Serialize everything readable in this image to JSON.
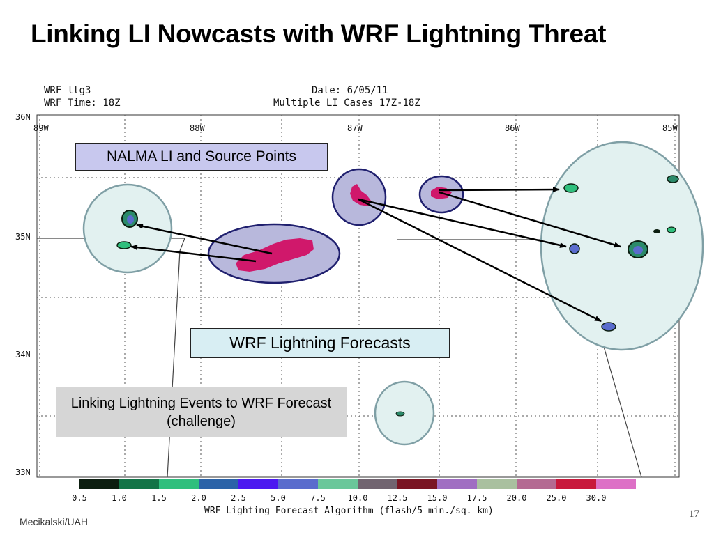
{
  "slide": {
    "title": "Linking LI Nowcasts with WRF Lightning Threat",
    "footer_credit": "Mecikalski/UAH",
    "slide_number": "17"
  },
  "map": {
    "header_left_1": "WRF ltg3",
    "header_left_2": "WRF Time: 18Z",
    "header_right_1": "Date: 6/05/11",
    "header_right_2": "Multiple LI  Cases 17Z-18Z",
    "lon_labels": [
      "89W",
      "88W",
      "87W",
      "86W",
      "85W"
    ],
    "lat_labels": [
      "36N",
      "35N",
      "34N",
      "33N"
    ],
    "colorbar": {
      "labels": [
        "0.5",
        "1.0",
        "1.5",
        "2.0",
        "2.5",
        "5.0",
        "7.5",
        "10.0",
        "12.5",
        "15.0",
        "17.5",
        "20.0",
        "25.0",
        "30.0"
      ],
      "colors": [
        "#0c1e10",
        "#137447",
        "#2fbf7d",
        "#2b63a8",
        "#4c19f0",
        "#5a6ccd",
        "#6ac79a",
        "#716470",
        "#7a1523",
        "#a06ec2",
        "#a9c09f",
        "#b46a92",
        "#c8193c",
        "#dd70c6"
      ],
      "caption": "WRF Lighting Forecast Algorithm (flash/5 min./sq. km)"
    }
  },
  "callouts": {
    "nalma": "NALMA LI and Source Points",
    "wrf": "WRF Lightning Forecasts",
    "linking": "Linking Lightning Events to WRF Forecast (challenge)"
  },
  "colors": {
    "nalma_fill": "#b8b8dc",
    "nalma_stroke": "#1f1f6e",
    "wrf_fill": "#e2f1f0",
    "wrf_stroke": "#7f9fa5",
    "source_points": "#d0186b",
    "grid": "#555555"
  }
}
